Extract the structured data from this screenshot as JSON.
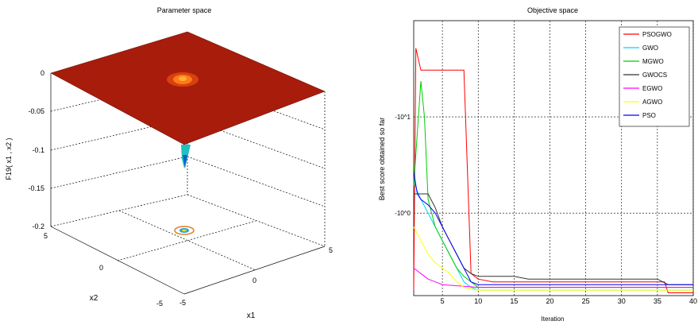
{
  "colors": {
    "surface": "#a81c0c",
    "surface_dark": "#7a0f06",
    "hot": "#ff7a18",
    "cold": "#1060c8",
    "grid": "#000000"
  },
  "left": {
    "title": "Parameter space",
    "zlabel": "F19( x1 , x2 )",
    "xlabel": "x1",
    "ylabel": "x2",
    "zticks": [
      "0",
      "-0.05",
      "-0.1",
      "-0.15",
      "-0.2"
    ],
    "x2ticks": [
      "5",
      "0",
      "-5"
    ],
    "x1ticks": [
      "-5",
      "0",
      "5"
    ]
  },
  "chart_data": [
    {
      "type": "surface",
      "title": "Parameter space",
      "zlabel": "F19( x1 , x2 )",
      "xlabel": "x1",
      "ylabel": "x2",
      "xlim": [
        -5,
        5
      ],
      "ylim": [
        -5,
        5
      ],
      "zlim": [
        -0.2,
        0
      ],
      "description_values": {
        "plateau_z": 0,
        "min_z": -0.2
      }
    },
    {
      "type": "line",
      "title": "Objective space",
      "xlabel": "Iteration",
      "ylabel": "Best score obtained so far",
      "xlim": [
        1,
        40
      ],
      "xticks": [
        "5",
        "10",
        "15",
        "20",
        "25",
        "30",
        "35",
        "40"
      ],
      "yticks": [
        "-10^1",
        "-10^0"
      ],
      "legend_position": "top-right",
      "series": [
        {
          "name": "PSOGWO",
          "color": "#ff0000",
          "values": [
            [
              1,
              0.02
            ],
            [
              1.3,
              0.9
            ],
            [
              2,
              0.82
            ],
            [
              3,
              0.82
            ],
            [
              4,
              0.82
            ],
            [
              5,
              0.82
            ],
            [
              6,
              0.82
            ],
            [
              7,
              0.82
            ],
            [
              8,
              0.82
            ],
            [
              9,
              0.08
            ],
            [
              10,
              0.06
            ],
            [
              12,
              0.05
            ],
            [
              16,
              0.05
            ],
            [
              20,
              0.05
            ],
            [
              25,
              0.05
            ],
            [
              30,
              0.05
            ],
            [
              36,
              0.05
            ],
            [
              36.5,
              0.01
            ],
            [
              40,
              0.01
            ]
          ]
        },
        {
          "name": "GWO",
          "color": "#00d0ff",
          "values": [
            [
              1,
              0.42
            ],
            [
              1.5,
              0.38
            ],
            [
              2,
              0.35
            ],
            [
              3,
              0.3
            ],
            [
              4,
              0.25
            ],
            [
              5,
              0.2
            ],
            [
              6,
              0.15
            ],
            [
              7,
              0.1
            ],
            [
              8,
              0.05
            ],
            [
              9,
              0.03
            ],
            [
              10,
              0.02
            ],
            [
              40,
              0.02
            ]
          ]
        },
        {
          "name": "MGWO",
          "color": "#00cc00",
          "values": [
            [
              1,
              0.4
            ],
            [
              2,
              0.78
            ],
            [
              2.5,
              0.65
            ],
            [
              3,
              0.35
            ],
            [
              4,
              0.25
            ],
            [
              5,
              0.2
            ],
            [
              6,
              0.15
            ],
            [
              7,
              0.1
            ],
            [
              8,
              0.07
            ],
            [
              9,
              0.05
            ],
            [
              10,
              0.03
            ],
            [
              40,
              0.03
            ]
          ]
        },
        {
          "name": "GWOCS",
          "color": "#333333",
          "values": [
            [
              1,
              0.37
            ],
            [
              2,
              0.37
            ],
            [
              3,
              0.37
            ],
            [
              4,
              0.32
            ],
            [
              5,
              0.25
            ],
            [
              6,
              0.2
            ],
            [
              7,
              0.15
            ],
            [
              8,
              0.1
            ],
            [
              9,
              0.08
            ],
            [
              10,
              0.07
            ],
            [
              15,
              0.07
            ],
            [
              17,
              0.06
            ],
            [
              20,
              0.06
            ],
            [
              25,
              0.06
            ],
            [
              30,
              0.06
            ],
            [
              35,
              0.06
            ],
            [
              36.5,
              0.04
            ],
            [
              40,
              0.04
            ]
          ]
        },
        {
          "name": "EGWO",
          "color": "#ff00ff",
          "values": [
            [
              1,
              0.1
            ],
            [
              2,
              0.08
            ],
            [
              3,
              0.06
            ],
            [
              4,
              0.05
            ],
            [
              5,
              0.04
            ],
            [
              10,
              0.03
            ],
            [
              40,
              0.03
            ]
          ]
        },
        {
          "name": "AGWO",
          "color": "#ffff00",
          "values": [
            [
              1,
              0.25
            ],
            [
              2,
              0.2
            ],
            [
              3,
              0.15
            ],
            [
              4,
              0.12
            ],
            [
              5,
              0.1
            ],
            [
              6,
              0.08
            ],
            [
              7,
              0.05
            ],
            [
              8,
              0.03
            ],
            [
              10,
              0.02
            ],
            [
              40,
              0.02
            ]
          ]
        },
        {
          "name": "PSO",
          "color": "#0000ff",
          "values": [
            [
              1,
              0.45
            ],
            [
              1.5,
              0.37
            ],
            [
              2,
              0.35
            ],
            [
              3,
              0.33
            ],
            [
              4,
              0.3
            ],
            [
              5,
              0.25
            ],
            [
              6,
              0.2
            ],
            [
              7,
              0.15
            ],
            [
              8,
              0.1
            ],
            [
              9,
              0.05
            ],
            [
              10,
              0.04
            ],
            [
              40,
              0.04
            ]
          ]
        }
      ]
    }
  ]
}
